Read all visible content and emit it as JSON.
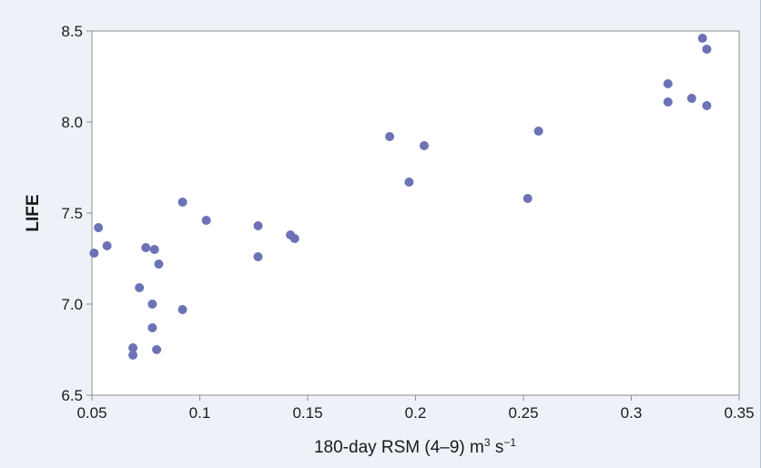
{
  "chart_data": {
    "type": "scatter",
    "title": "",
    "xlabel": {
      "main": "180-day RSM (4–9) m",
      "sup1": "3",
      "mid": " s",
      "sup2": "−1"
    },
    "ylabel": "LIFE",
    "xlim": [
      0.05,
      0.35
    ],
    "ylim": [
      6.5,
      8.5
    ],
    "x_ticks": [
      0.05,
      0.1,
      0.15,
      0.2,
      0.25,
      0.3,
      0.35
    ],
    "x_tick_labels": [
      "0.05",
      "0.1",
      "0.15",
      "0.2",
      "0.25",
      "0.3",
      "0.35"
    ],
    "y_ticks": [
      6.5,
      7.0,
      7.5,
      8.0,
      8.5
    ],
    "y_tick_labels": [
      "6.5",
      "7.0",
      "7.5",
      "8.0",
      "8.5"
    ],
    "grid": false,
    "legend": "none",
    "marker_color": "#6b72b5",
    "points": [
      {
        "x": 0.051,
        "y": 7.28
      },
      {
        "x": 0.053,
        "y": 7.42
      },
      {
        "x": 0.057,
        "y": 7.32
      },
      {
        "x": 0.069,
        "y": 6.76
      },
      {
        "x": 0.069,
        "y": 6.72
      },
      {
        "x": 0.072,
        "y": 7.09
      },
      {
        "x": 0.075,
        "y": 7.31
      },
      {
        "x": 0.078,
        "y": 7.0
      },
      {
        "x": 0.078,
        "y": 6.87
      },
      {
        "x": 0.079,
        "y": 7.3
      },
      {
        "x": 0.08,
        "y": 6.75
      },
      {
        "x": 0.081,
        "y": 7.22
      },
      {
        "x": 0.092,
        "y": 7.56
      },
      {
        "x": 0.092,
        "y": 6.97
      },
      {
        "x": 0.103,
        "y": 7.46
      },
      {
        "x": 0.127,
        "y": 7.43
      },
      {
        "x": 0.127,
        "y": 7.26
      },
      {
        "x": 0.142,
        "y": 7.38
      },
      {
        "x": 0.144,
        "y": 7.36
      },
      {
        "x": 0.188,
        "y": 7.92
      },
      {
        "x": 0.197,
        "y": 7.67
      },
      {
        "x": 0.204,
        "y": 7.87
      },
      {
        "x": 0.252,
        "y": 7.58
      },
      {
        "x": 0.257,
        "y": 7.95
      },
      {
        "x": 0.317,
        "y": 8.21
      },
      {
        "x": 0.317,
        "y": 8.11
      },
      {
        "x": 0.328,
        "y": 8.13
      },
      {
        "x": 0.333,
        "y": 8.46
      },
      {
        "x": 0.335,
        "y": 8.4
      },
      {
        "x": 0.335,
        "y": 8.09
      }
    ]
  }
}
